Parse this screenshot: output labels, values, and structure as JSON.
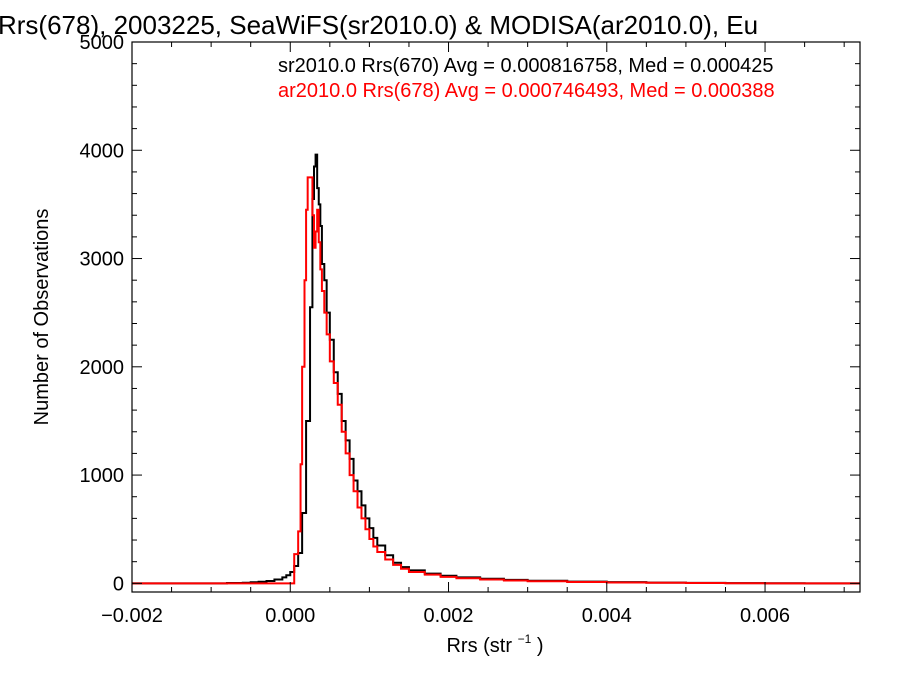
{
  "chart_data": {
    "type": "histogram",
    "title": "Rrs(678), 2003225, SeaWiFS(sr2010.0) & MODISA(ar2010.0), Eu",
    "xlabel": "Rrs (str",
    "xlabel_sup": "−1",
    "xlabel_end": ")",
    "ylabel": "Number of Observations",
    "xlim": [
      -0.002,
      0.0072
    ],
    "ylim": [
      -80,
      5000
    ],
    "grid": false,
    "x_ticks": [
      {
        "value": -0.002,
        "label": "−0.002"
      },
      {
        "value": 0.0,
        "label": "0.000"
      },
      {
        "value": 0.002,
        "label": "0.002"
      },
      {
        "value": 0.004,
        "label": "0.004"
      },
      {
        "value": 0.006,
        "label": "0.006"
      }
    ],
    "y_ticks": [
      {
        "value": 0,
        "label": "0"
      },
      {
        "value": 1000,
        "label": "1000"
      },
      {
        "value": 2000,
        "label": "2000"
      },
      {
        "value": 3000,
        "label": "3000"
      },
      {
        "value": 4000,
        "label": "4000"
      },
      {
        "value": 5000,
        "label": "5000"
      }
    ],
    "annotations": [
      {
        "text": "sr2010.0 Rrs(670) Avg = 0.000816758, Med = 0.000425 ",
        "color": "#000000"
      },
      {
        "text": "ar2010.0 Rrs(678) Avg = 0.000746493, Med = 0.000388",
        "color": "#ff0000"
      }
    ],
    "series": [
      {
        "color": "#000000",
        "points": [
          [
            -0.002,
            0
          ],
          [
            -0.0012,
            0
          ],
          [
            -0.0008,
            3
          ],
          [
            -0.0006,
            6
          ],
          [
            -0.0005,
            10
          ],
          [
            -0.0004,
            15
          ],
          [
            -0.0003,
            22
          ],
          [
            -0.0002,
            35
          ],
          [
            -0.0001,
            55
          ],
          [
            -5e-05,
            75
          ],
          [
            0.0,
            105
          ],
          [
            5e-05,
            160
          ],
          [
            0.0001,
            280
          ],
          [
            0.00015,
            650
          ],
          [
            0.0002,
            1500
          ],
          [
            0.00025,
            2550
          ],
          [
            0.00028,
            3550
          ],
          [
            0.0003,
            3850
          ],
          [
            0.00032,
            3960
          ],
          [
            0.00034,
            3650
          ],
          [
            0.00036,
            3500
          ],
          [
            0.00038,
            3300
          ],
          [
            0.0004,
            2950
          ],
          [
            0.00043,
            2800
          ],
          [
            0.00046,
            2500
          ],
          [
            0.0005,
            2250
          ],
          [
            0.00055,
            1950
          ],
          [
            0.0006,
            1750
          ],
          [
            0.00065,
            1500
          ],
          [
            0.0007,
            1320
          ],
          [
            0.00075,
            1150
          ],
          [
            0.0008,
            950
          ],
          [
            0.00085,
            850
          ],
          [
            0.0009,
            720
          ],
          [
            0.00095,
            600
          ],
          [
            0.001,
            510
          ],
          [
            0.00105,
            420
          ],
          [
            0.0011,
            350
          ],
          [
            0.0012,
            260
          ],
          [
            0.0013,
            190
          ],
          [
            0.0014,
            150
          ],
          [
            0.0015,
            120
          ],
          [
            0.0017,
            90
          ],
          [
            0.0019,
            70
          ],
          [
            0.0021,
            55
          ],
          [
            0.0024,
            42
          ],
          [
            0.0027,
            32
          ],
          [
            0.003,
            24
          ],
          [
            0.0035,
            16
          ],
          [
            0.004,
            11
          ],
          [
            0.0045,
            7
          ],
          [
            0.005,
            4
          ],
          [
            0.0055,
            2
          ],
          [
            0.006,
            1
          ],
          [
            0.0065,
            0
          ],
          [
            0.0072,
            0
          ]
        ]
      },
      {
        "color": "#ff0000",
        "points": [
          [
            -0.002,
            0
          ],
          [
            0.0,
            0
          ],
          [
            5e-05,
            270
          ],
          [
            0.0001,
            480
          ],
          [
            0.00013,
            1100
          ],
          [
            0.00015,
            2000
          ],
          [
            0.00018,
            2800
          ],
          [
            0.0002,
            3450
          ],
          [
            0.00022,
            3750
          ],
          [
            0.00025,
            3750
          ],
          [
            0.00028,
            3400
          ],
          [
            0.0003,
            3100
          ],
          [
            0.00032,
            3250
          ],
          [
            0.00034,
            3450
          ],
          [
            0.00036,
            3150
          ],
          [
            0.00038,
            2900
          ],
          [
            0.0004,
            2700
          ],
          [
            0.00043,
            2500
          ],
          [
            0.00046,
            2300
          ],
          [
            0.0005,
            2050
          ],
          [
            0.00055,
            1850
          ],
          [
            0.0006,
            1650
          ],
          [
            0.00065,
            1400
          ],
          [
            0.0007,
            1200
          ],
          [
            0.00075,
            1000
          ],
          [
            0.0008,
            850
          ],
          [
            0.00085,
            700
          ],
          [
            0.0009,
            600
          ],
          [
            0.00095,
            500
          ],
          [
            0.001,
            410
          ],
          [
            0.00105,
            340
          ],
          [
            0.0011,
            290
          ],
          [
            0.0012,
            220
          ],
          [
            0.0013,
            170
          ],
          [
            0.0014,
            135
          ],
          [
            0.0015,
            105
          ],
          [
            0.0017,
            80
          ],
          [
            0.0019,
            60
          ],
          [
            0.0021,
            47
          ],
          [
            0.0024,
            35
          ],
          [
            0.0027,
            26
          ],
          [
            0.003,
            19
          ],
          [
            0.0035,
            12
          ],
          [
            0.004,
            8
          ],
          [
            0.0045,
            5
          ],
          [
            0.005,
            3
          ],
          [
            0.0055,
            1
          ],
          [
            0.006,
            0
          ],
          [
            0.0072,
            0
          ]
        ]
      }
    ]
  }
}
